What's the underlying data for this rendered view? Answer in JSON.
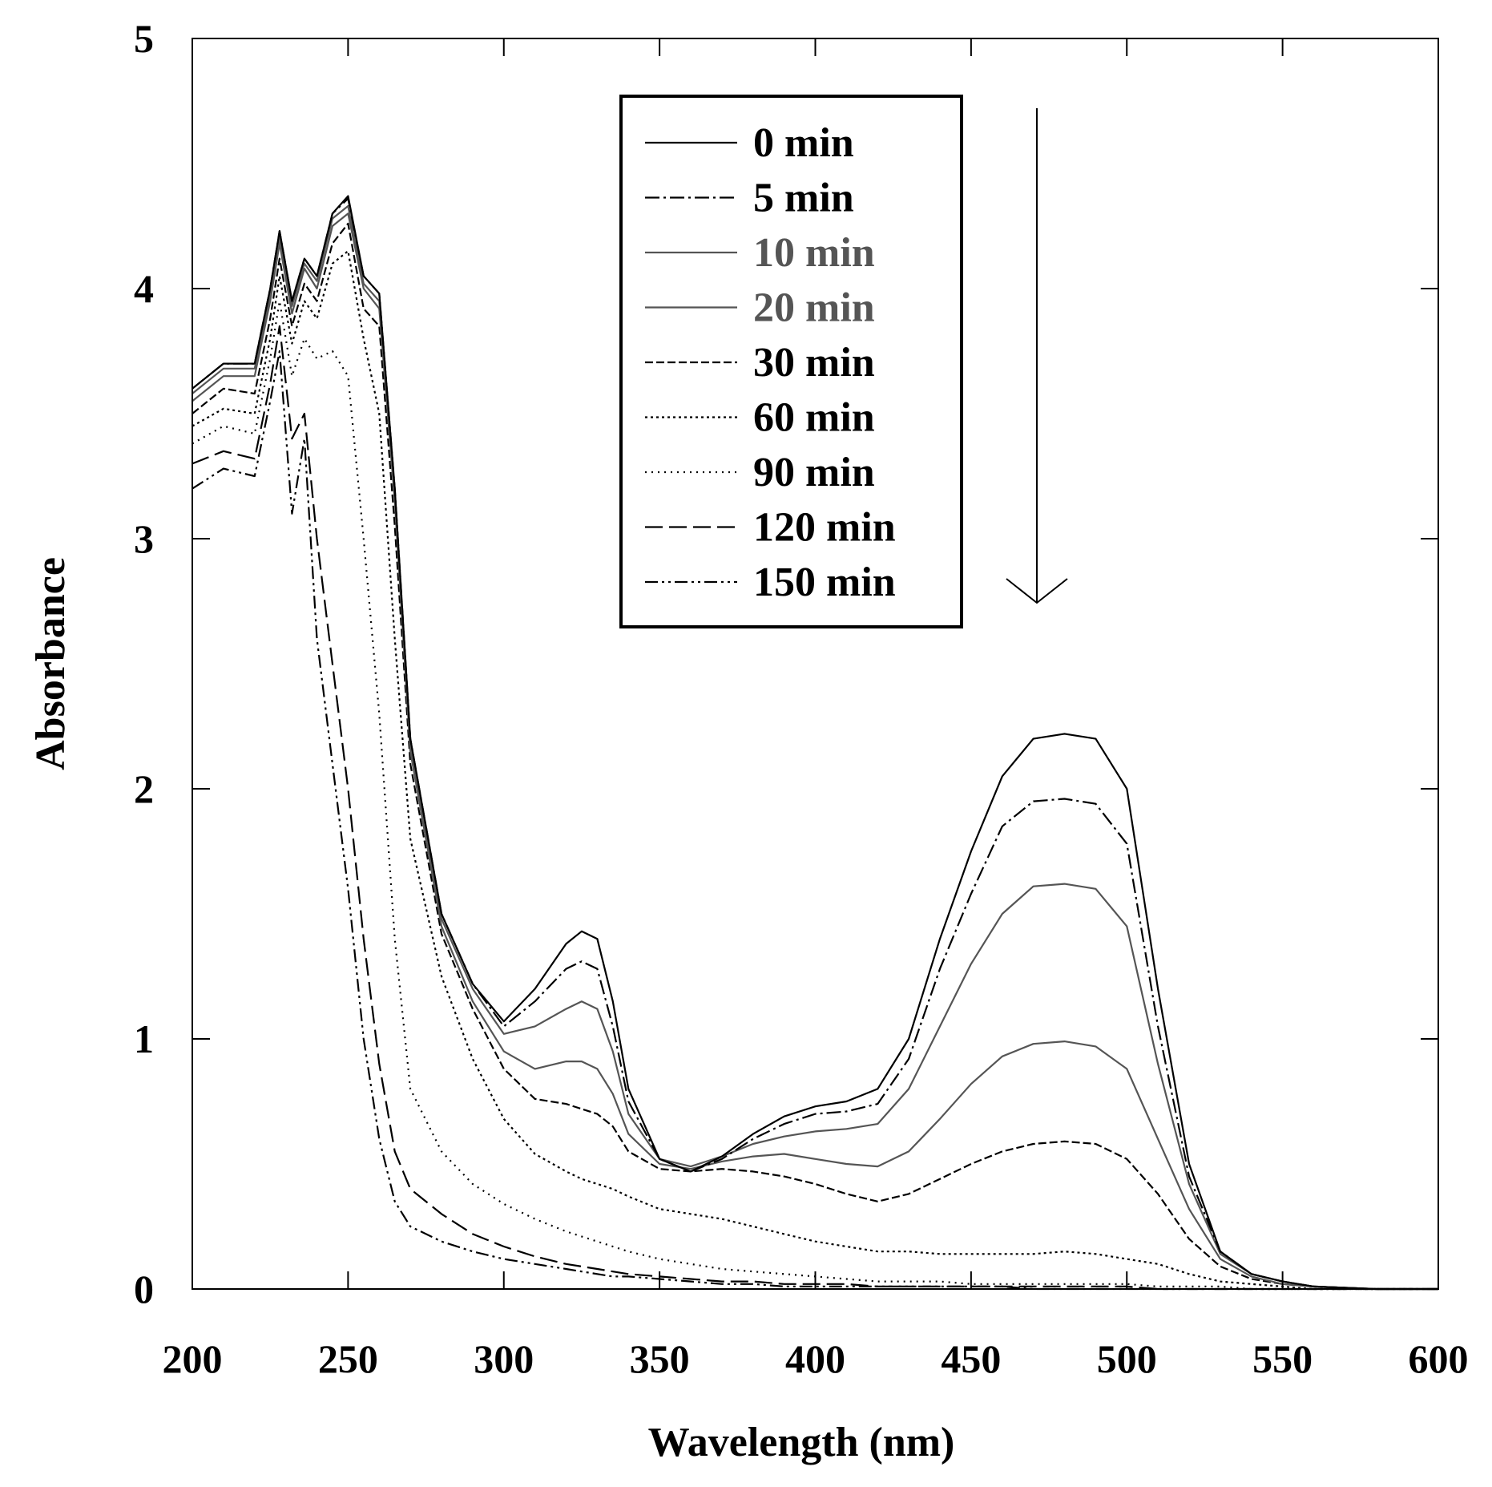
{
  "chart_data": {
    "type": "line",
    "title": "",
    "xlabel": "Wavelength (nm)",
    "ylabel": "Absorbance",
    "xlim": [
      200,
      600
    ],
    "ylim": [
      0,
      5
    ],
    "xticks": [
      "200",
      "250",
      "300",
      "350",
      "400",
      "450",
      "500",
      "550",
      "600"
    ],
    "yticks": [
      "0",
      "1",
      "2",
      "3",
      "4",
      "5"
    ],
    "grid": false,
    "legend_position": "top-center",
    "annotation": "downward arrow indicating decreasing absorbance with time",
    "x": [
      200,
      210,
      220,
      225,
      228,
      232,
      236,
      240,
      245,
      250,
      255,
      260,
      265,
      270,
      280,
      290,
      300,
      310,
      320,
      325,
      330,
      335,
      340,
      350,
      360,
      370,
      380,
      390,
      400,
      410,
      420,
      430,
      440,
      450,
      460,
      470,
      480,
      490,
      500,
      510,
      520,
      530,
      540,
      550,
      560,
      580,
      600
    ],
    "series": [
      {
        "name": "0 min",
        "color": "#000000",
        "dash": "",
        "values": [
          3.6,
          3.7,
          3.7,
          4.0,
          4.23,
          3.95,
          4.12,
          4.05,
          4.3,
          4.37,
          4.05,
          3.98,
          3.2,
          2.2,
          1.5,
          1.22,
          1.07,
          1.2,
          1.38,
          1.43,
          1.4,
          1.15,
          0.8,
          0.52,
          0.47,
          0.53,
          0.62,
          0.69,
          0.73,
          0.75,
          0.8,
          1.0,
          1.4,
          1.75,
          2.05,
          2.2,
          2.22,
          2.2,
          2.0,
          1.2,
          0.5,
          0.15,
          0.06,
          0.03,
          0.01,
          0.0,
          0.0
        ]
      },
      {
        "name": "5 min",
        "color": "#000000",
        "dash": "18 5 3 5",
        "values": [
          3.6,
          3.7,
          3.7,
          4.0,
          4.23,
          3.95,
          4.12,
          4.05,
          4.3,
          4.36,
          4.05,
          3.98,
          3.2,
          2.2,
          1.5,
          1.22,
          1.05,
          1.15,
          1.28,
          1.31,
          1.28,
          1.05,
          0.75,
          0.52,
          0.47,
          0.52,
          0.6,
          0.66,
          0.7,
          0.71,
          0.74,
          0.92,
          1.28,
          1.58,
          1.85,
          1.95,
          1.96,
          1.94,
          1.78,
          1.05,
          0.45,
          0.15,
          0.06,
          0.03,
          0.01,
          0.0,
          0.0
        ]
      },
      {
        "name": "10 min",
        "color": "#555555",
        "dash": "",
        "values": [
          3.58,
          3.68,
          3.68,
          3.98,
          4.2,
          3.93,
          4.1,
          4.03,
          4.28,
          4.33,
          4.02,
          3.95,
          3.18,
          2.18,
          1.48,
          1.2,
          1.02,
          1.05,
          1.12,
          1.15,
          1.12,
          0.95,
          0.7,
          0.52,
          0.49,
          0.53,
          0.58,
          0.61,
          0.63,
          0.64,
          0.66,
          0.8,
          1.05,
          1.3,
          1.5,
          1.61,
          1.62,
          1.6,
          1.45,
          0.9,
          0.42,
          0.14,
          0.06,
          0.03,
          0.01,
          0.0,
          0.0
        ]
      },
      {
        "name": "20 min",
        "color": "#555555",
        "dash": "",
        "values": [
          3.55,
          3.65,
          3.65,
          3.95,
          4.18,
          3.9,
          4.08,
          4.0,
          4.25,
          4.3,
          4.0,
          3.92,
          3.15,
          2.15,
          1.45,
          1.15,
          0.95,
          0.88,
          0.91,
          0.91,
          0.88,
          0.78,
          0.62,
          0.5,
          0.48,
          0.51,
          0.53,
          0.54,
          0.52,
          0.5,
          0.49,
          0.55,
          0.68,
          0.82,
          0.93,
          0.98,
          0.99,
          0.97,
          0.88,
          0.6,
          0.32,
          0.12,
          0.05,
          0.02,
          0.01,
          0.0,
          0.0
        ]
      },
      {
        "name": "30 min",
        "color": "#000000",
        "dash": "10 4",
        "values": [
          3.5,
          3.6,
          3.58,
          3.88,
          4.12,
          3.85,
          4.02,
          3.95,
          4.18,
          4.26,
          3.92,
          3.85,
          3.05,
          2.1,
          1.42,
          1.12,
          0.88,
          0.76,
          0.74,
          0.72,
          0.7,
          0.65,
          0.55,
          0.48,
          0.47,
          0.48,
          0.47,
          0.45,
          0.42,
          0.38,
          0.35,
          0.38,
          0.44,
          0.5,
          0.55,
          0.58,
          0.59,
          0.58,
          0.52,
          0.38,
          0.2,
          0.09,
          0.04,
          0.02,
          0.01,
          0.0,
          0.0
        ]
      },
      {
        "name": "60 min",
        "color": "#000000",
        "dash": "3 4",
        "values": [
          3.45,
          3.52,
          3.5,
          3.8,
          4.05,
          3.78,
          3.95,
          3.88,
          4.1,
          4.15,
          3.8,
          3.5,
          2.6,
          1.8,
          1.25,
          0.92,
          0.68,
          0.54,
          0.47,
          0.44,
          0.42,
          0.4,
          0.37,
          0.32,
          0.3,
          0.28,
          0.25,
          0.22,
          0.19,
          0.17,
          0.15,
          0.15,
          0.14,
          0.14,
          0.14,
          0.14,
          0.15,
          0.14,
          0.12,
          0.1,
          0.06,
          0.03,
          0.02,
          0.01,
          0.0,
          0.0,
          0.0
        ]
      },
      {
        "name": "90 min",
        "color": "#000000",
        "dash": "2 6",
        "values": [
          3.38,
          3.45,
          3.42,
          3.72,
          3.95,
          3.65,
          3.8,
          3.72,
          3.75,
          3.65,
          3.0,
          2.3,
          1.4,
          0.8,
          0.55,
          0.42,
          0.34,
          0.28,
          0.23,
          0.21,
          0.19,
          0.17,
          0.15,
          0.12,
          0.1,
          0.08,
          0.07,
          0.06,
          0.05,
          0.04,
          0.03,
          0.03,
          0.03,
          0.02,
          0.02,
          0.02,
          0.02,
          0.02,
          0.02,
          0.01,
          0.01,
          0.01,
          0.0,
          0.0,
          0.0,
          0.0,
          0.0
        ]
      },
      {
        "name": "120 min",
        "color": "#000000",
        "dash": "22 8",
        "values": [
          3.3,
          3.35,
          3.32,
          3.62,
          3.85,
          3.4,
          3.5,
          3.0,
          2.5,
          2.0,
          1.4,
          0.9,
          0.55,
          0.4,
          0.3,
          0.22,
          0.17,
          0.13,
          0.1,
          0.09,
          0.08,
          0.07,
          0.06,
          0.05,
          0.04,
          0.03,
          0.03,
          0.02,
          0.02,
          0.02,
          0.01,
          0.01,
          0.01,
          0.01,
          0.01,
          0.01,
          0.01,
          0.01,
          0.01,
          0.0,
          0.0,
          0.0,
          0.0,
          0.0,
          0.0,
          0.0,
          0.0
        ]
      },
      {
        "name": "150 min",
        "color": "#000000",
        "dash": "16 5 3 5 3 5",
        "values": [
          3.2,
          3.28,
          3.25,
          3.55,
          3.75,
          3.1,
          3.4,
          2.6,
          2.1,
          1.6,
          1.0,
          0.6,
          0.35,
          0.25,
          0.19,
          0.15,
          0.12,
          0.1,
          0.08,
          0.07,
          0.06,
          0.05,
          0.05,
          0.04,
          0.03,
          0.02,
          0.02,
          0.01,
          0.01,
          0.01,
          0.01,
          0.01,
          0.01,
          0.01,
          0.01,
          0.0,
          0.0,
          0.0,
          0.0,
          0.0,
          0.0,
          0.0,
          0.0,
          0.0,
          0.0,
          0.0,
          0.0
        ]
      }
    ]
  }
}
